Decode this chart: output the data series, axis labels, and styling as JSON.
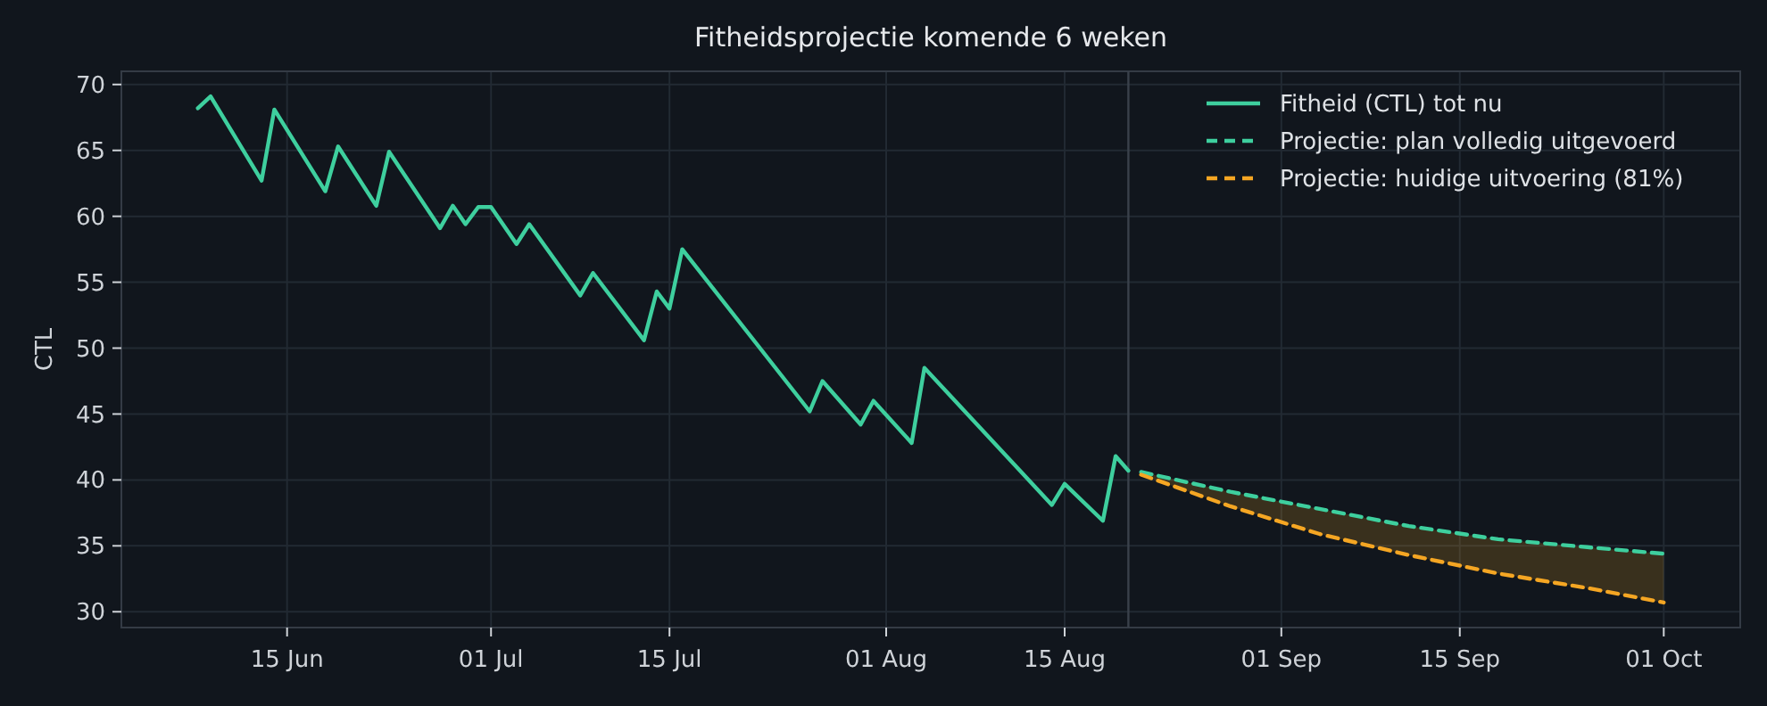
{
  "chart_data": {
    "type": "line",
    "title": "Fitheidsprojectie komende 6 weken",
    "ylabel": "CTL",
    "xlim": [
      "--06-02",
      "--10-07"
    ],
    "xticks": [
      {
        "value": "--06-15",
        "label": "15 Jun"
      },
      {
        "value": "--07-01",
        "label": "01 Jul"
      },
      {
        "value": "--07-15",
        "label": "15 Jul"
      },
      {
        "value": "--08-01",
        "label": "01 Aug"
      },
      {
        "value": "--08-15",
        "label": "15 Aug"
      },
      {
        "value": "--09-01",
        "label": "01 Sep"
      },
      {
        "value": "--09-15",
        "label": "15 Sep"
      },
      {
        "value": "--10-01",
        "label": "01 Oct"
      }
    ],
    "ylim": [
      28.8,
      71
    ],
    "yticks": [
      30,
      35,
      40,
      45,
      50,
      55,
      60,
      65,
      70
    ],
    "grid": true,
    "legend": "top right",
    "ref_lines": [
      {
        "axis": "x",
        "value": "--08-20",
        "color": "#3a414b"
      }
    ],
    "series": [
      {
        "name": "Fitheid (CTL) tot nu",
        "color": "#3ecf9e",
        "line_style": "solid",
        "x": [
          "--06-08",
          "--06-09",
          "--06-13",
          "--06-14",
          "--06-18",
          "--06-19",
          "--06-22",
          "--06-23",
          "--06-27",
          "--06-28",
          "--06-29",
          "--06-30",
          "--07-01",
          "--07-03",
          "--07-04",
          "--07-08",
          "--07-09",
          "--07-13",
          "--07-14",
          "--07-15",
          "--07-16",
          "--07-26",
          "--07-27",
          "--07-30",
          "--07-31",
          "--08-03",
          "--08-04",
          "--08-14",
          "--08-15",
          "--08-18",
          "--08-19",
          "--08-20"
        ],
        "values": [
          68.2,
          69.1,
          62.7,
          68.1,
          61.9,
          65.3,
          60.8,
          64.9,
          59.1,
          60.8,
          59.4,
          60.7,
          60.7,
          57.9,
          59.4,
          54.0,
          55.7,
          50.6,
          54.3,
          53.0,
          57.5,
          45.2,
          47.5,
          44.2,
          46.0,
          42.8,
          48.5,
          38.1,
          39.7,
          36.9,
          41.8,
          40.7
        ]
      },
      {
        "name": "Projectie: plan volledig uitgevoerd",
        "color": "#3ecf9e",
        "line_style": "dashed",
        "x": [
          "--08-21",
          "--08-28",
          "--09-04",
          "--09-11",
          "--09-18",
          "--09-25",
          "--10-01"
        ],
        "values": [
          40.6,
          39.1,
          37.8,
          36.5,
          35.5,
          34.9,
          34.4
        ],
        "lower": [
          40.4,
          38.0,
          35.9,
          34.3,
          32.9,
          31.8,
          30.7
        ],
        "upper": [
          40.6,
          39.1,
          37.8,
          36.5,
          35.5,
          34.9,
          34.4
        ]
      },
      {
        "name": "Projectie: huidige uitvoering (81%)",
        "color": "#f5a623",
        "line_style": "dashed",
        "x": [
          "--08-21",
          "--08-28",
          "--09-04",
          "--09-11",
          "--09-18",
          "--09-25",
          "--10-01"
        ],
        "values": [
          40.4,
          38.0,
          35.9,
          34.3,
          32.9,
          31.8,
          30.7
        ]
      }
    ]
  }
}
